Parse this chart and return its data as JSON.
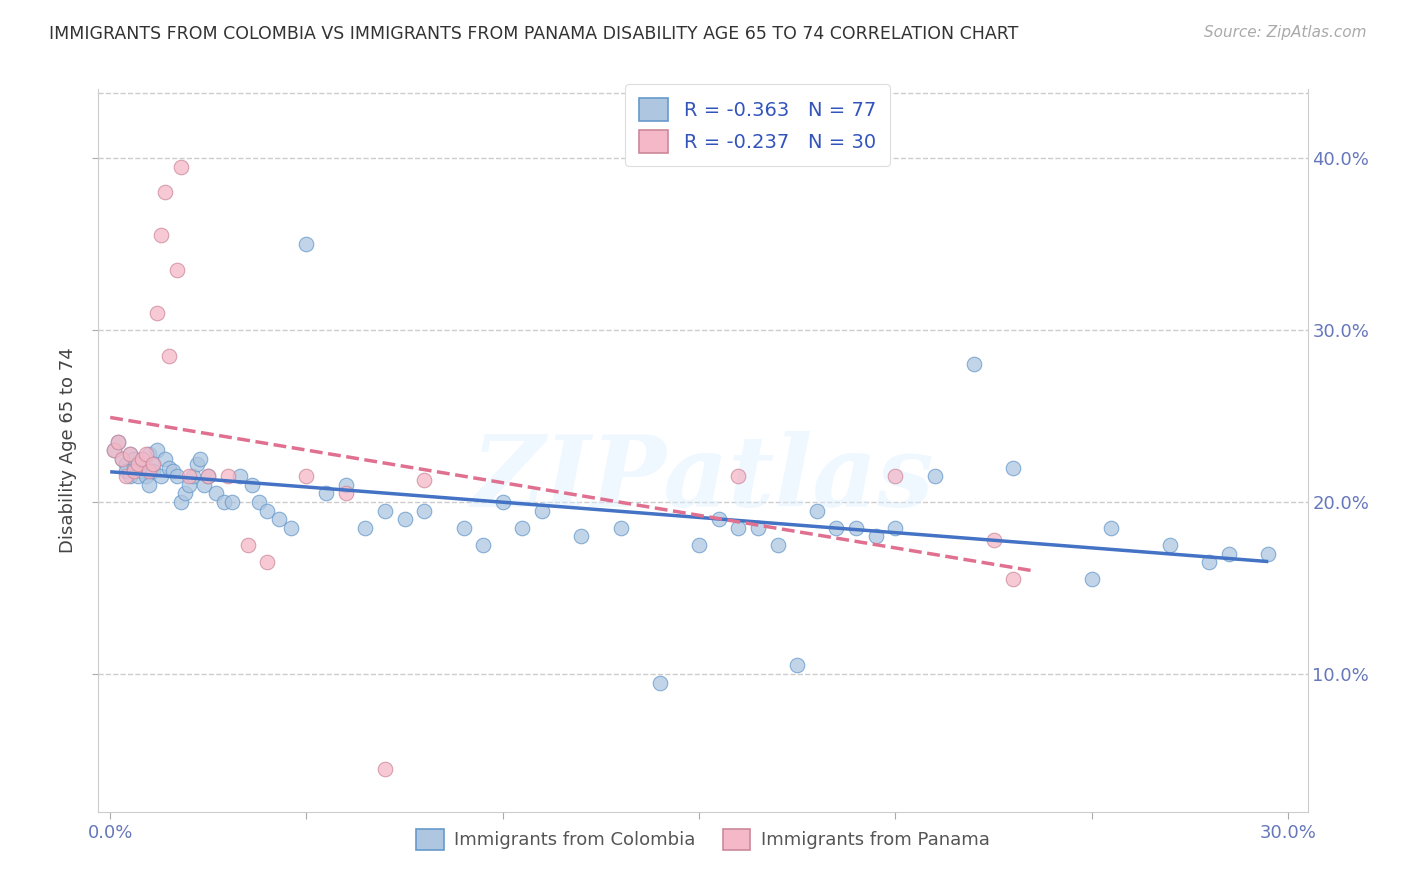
{
  "title": "IMMIGRANTS FROM COLOMBIA VS IMMIGRANTS FROM PANAMA DISABILITY AGE 65 TO 74 CORRELATION CHART",
  "source": "Source: ZipAtlas.com",
  "ylabel": "Disability Age 65 to 74",
  "colombia_color_fill": "#aec6e0",
  "colombia_color_edge": "#6699cc",
  "panama_color_fill": "#f4b8c8",
  "panama_color_edge": "#cc8899",
  "colombia_line_color": "#4472c4",
  "panama_line_color": "#e07090",
  "colombia_R": -0.363,
  "colombia_N": 77,
  "panama_R": -0.237,
  "panama_N": 30,
  "watermark": "ZIPatlas",
  "grid_color": "#cccccc",
  "tick_color": "#6677bb",
  "xlim_low": -0.003,
  "xlim_high": 0.305,
  "ylim_low": 0.02,
  "ylim_high": 0.44,
  "ytick_vals": [
    0.1,
    0.2,
    0.3,
    0.4
  ],
  "colombia_x": [
    0.001,
    0.002,
    0.003,
    0.004,
    0.004,
    0.005,
    0.005,
    0.006,
    0.006,
    0.007,
    0.007,
    0.008,
    0.008,
    0.009,
    0.009,
    0.01,
    0.01,
    0.011,
    0.011,
    0.012,
    0.013,
    0.014,
    0.015,
    0.016,
    0.017,
    0.018,
    0.019,
    0.02,
    0.021,
    0.022,
    0.023,
    0.024,
    0.025,
    0.027,
    0.029,
    0.031,
    0.033,
    0.036,
    0.038,
    0.04,
    0.043,
    0.046,
    0.05,
    0.055,
    0.06,
    0.065,
    0.07,
    0.075,
    0.08,
    0.09,
    0.095,
    0.1,
    0.105,
    0.11,
    0.12,
    0.13,
    0.14,
    0.15,
    0.155,
    0.16,
    0.165,
    0.17,
    0.175,
    0.18,
    0.185,
    0.19,
    0.195,
    0.2,
    0.21,
    0.22,
    0.23,
    0.25,
    0.255,
    0.27,
    0.28,
    0.285,
    0.295
  ],
  "colombia_y": [
    0.23,
    0.235,
    0.225,
    0.222,
    0.218,
    0.228,
    0.215,
    0.22,
    0.225,
    0.215,
    0.222,
    0.218,
    0.225,
    0.22,
    0.215,
    0.228,
    0.21,
    0.222,
    0.218,
    0.23,
    0.215,
    0.225,
    0.22,
    0.218,
    0.215,
    0.2,
    0.205,
    0.21,
    0.215,
    0.222,
    0.225,
    0.21,
    0.215,
    0.205,
    0.2,
    0.2,
    0.215,
    0.21,
    0.2,
    0.195,
    0.19,
    0.185,
    0.35,
    0.205,
    0.21,
    0.185,
    0.195,
    0.19,
    0.195,
    0.185,
    0.175,
    0.2,
    0.185,
    0.195,
    0.18,
    0.185,
    0.095,
    0.175,
    0.19,
    0.185,
    0.185,
    0.175,
    0.105,
    0.195,
    0.185,
    0.185,
    0.18,
    0.185,
    0.215,
    0.28,
    0.22,
    0.155,
    0.185,
    0.175,
    0.165,
    0.17,
    0.17
  ],
  "panama_x": [
    0.001,
    0.002,
    0.003,
    0.004,
    0.005,
    0.006,
    0.007,
    0.008,
    0.009,
    0.01,
    0.011,
    0.012,
    0.013,
    0.014,
    0.015,
    0.017,
    0.018,
    0.02,
    0.025,
    0.03,
    0.035,
    0.04,
    0.05,
    0.06,
    0.07,
    0.08,
    0.16,
    0.2,
    0.225,
    0.23
  ],
  "panama_y": [
    0.23,
    0.235,
    0.225,
    0.215,
    0.228,
    0.218,
    0.222,
    0.225,
    0.228,
    0.218,
    0.222,
    0.31,
    0.355,
    0.38,
    0.285,
    0.335,
    0.395,
    0.215,
    0.215,
    0.215,
    0.175,
    0.165,
    0.215,
    0.205,
    0.045,
    0.213,
    0.215,
    0.215,
    0.178,
    0.155
  ],
  "legend_r_color": "#3355bb",
  "legend_n_color": "#333333"
}
